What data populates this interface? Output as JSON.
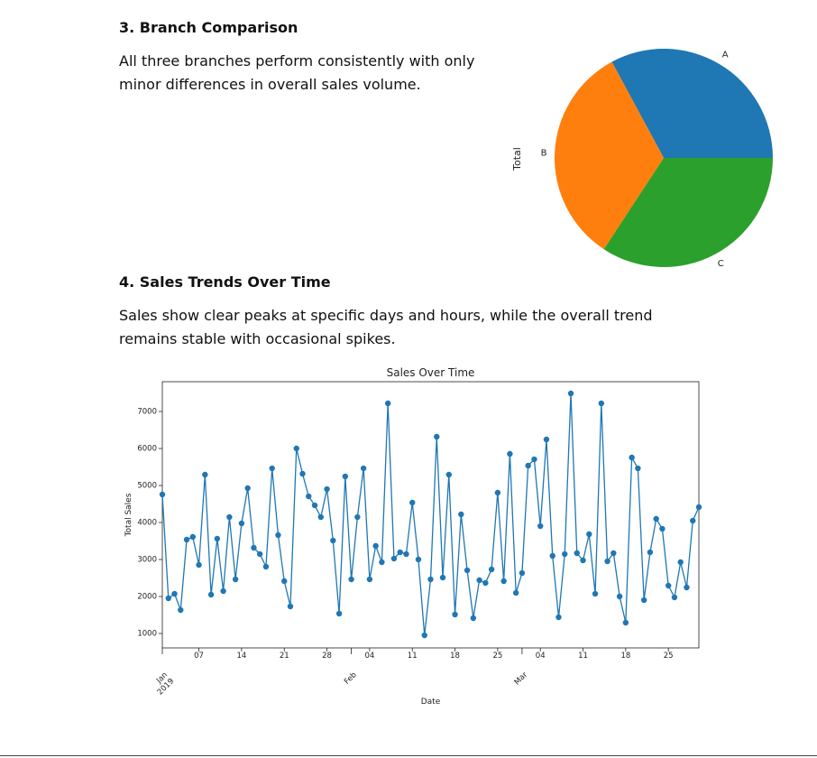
{
  "sections": [
    {
      "heading": "3. Branch Comparison",
      "text": "All three branches perform consistently with only minor differences in overall sales volume."
    },
    {
      "heading": "4. Sales Trends Over Time",
      "text": "Sales show clear peaks at specific days and hours, while the overall trend remains stable with occasional spikes."
    }
  ],
  "chart_data": [
    {
      "type": "pie",
      "categories": [
        "A",
        "B",
        "C"
      ],
      "values": [
        106200,
        106198,
        110569
      ],
      "colors": [
        "#1f77b4",
        "#ff7f0e",
        "#2ca02c"
      ],
      "ylabel": "Total",
      "startangle": 0
    },
    {
      "type": "line",
      "title": "Sales Over Time",
      "xlabel": "Date",
      "ylabel": "Total Sales",
      "color": "#1f77b4",
      "x": [
        "2019-01-01",
        "2019-01-02",
        "2019-01-03",
        "2019-01-04",
        "2019-01-05",
        "2019-01-06",
        "2019-01-07",
        "2019-01-08",
        "2019-01-09",
        "2019-01-10",
        "2019-01-11",
        "2019-01-12",
        "2019-01-13",
        "2019-01-14",
        "2019-01-15",
        "2019-01-16",
        "2019-01-17",
        "2019-01-18",
        "2019-01-19",
        "2019-01-20",
        "2019-01-21",
        "2019-01-22",
        "2019-01-23",
        "2019-01-24",
        "2019-01-25",
        "2019-01-26",
        "2019-01-27",
        "2019-01-28",
        "2019-01-29",
        "2019-01-30",
        "2019-01-31",
        "2019-02-01",
        "2019-02-02",
        "2019-02-03",
        "2019-02-04",
        "2019-02-05",
        "2019-02-06",
        "2019-02-07",
        "2019-02-08",
        "2019-02-09",
        "2019-02-10",
        "2019-02-11",
        "2019-02-12",
        "2019-02-13",
        "2019-02-14",
        "2019-02-15",
        "2019-02-16",
        "2019-02-17",
        "2019-02-18",
        "2019-02-19",
        "2019-02-20",
        "2019-02-21",
        "2019-02-22",
        "2019-02-23",
        "2019-02-24",
        "2019-02-25",
        "2019-02-26",
        "2019-02-27",
        "2019-02-28",
        "2019-03-01",
        "2019-03-02",
        "2019-03-03",
        "2019-03-04",
        "2019-03-05",
        "2019-03-06",
        "2019-03-07",
        "2019-03-08",
        "2019-03-09",
        "2019-03-10",
        "2019-03-11",
        "2019-03-12",
        "2019-03-13",
        "2019-03-14",
        "2019-03-15",
        "2019-03-16",
        "2019-03-17",
        "2019-03-18",
        "2019-03-19",
        "2019-03-20",
        "2019-03-21",
        "2019-03-22",
        "2019-03-23",
        "2019-03-24",
        "2019-03-25",
        "2019-03-26",
        "2019-03-27",
        "2019-03-28",
        "2019-03-29",
        "2019-03-30"
      ],
      "values": [
        4756,
        1951,
        2073,
        1634,
        3537,
        3610,
        2854,
        5293,
        2049,
        3561,
        2146,
        4146,
        2463,
        3976,
        4927,
        3317,
        3146,
        2805,
        5463,
        3659,
        2415,
        1732,
        6000,
        5317,
        4707,
        4463,
        4146,
        4902,
        3512,
        1537,
        5244,
        2463,
        4146,
        5463,
        2463,
        3366,
        2927,
        7220,
        3024,
        3195,
        3146,
        4537,
        3000,
        951,
        2463,
        6317,
        2512,
        5293,
        1512,
        4220,
        2707,
        1415,
        2439,
        2366,
        2732,
        4805,
        2415,
        5854,
        2098,
        2634,
        5537,
        5707,
        3902,
        6244,
        3098,
        1439,
        3146,
        7488,
        3171,
        2976,
        3683,
        2073,
        7220,
        2951,
        3171,
        2000,
        1293,
        5756,
        5463,
        1902,
        3195,
        4098,
        3829,
        2293,
        1976,
        2927,
        2244,
        4049,
        4415
      ],
      "xlim": [
        "2019-01-01",
        "2019-03-30"
      ],
      "xticks": [
        {
          "value": "2019-01-01",
          "label": "Jan\n2019"
        },
        {
          "value": "2019-01-07",
          "label": "07"
        },
        {
          "value": "2019-01-14",
          "label": "14"
        },
        {
          "value": "2019-01-21",
          "label": "21"
        },
        {
          "value": "2019-01-28",
          "label": "28"
        },
        {
          "value": "2019-02-01",
          "label": "Feb"
        },
        {
          "value": "2019-02-04",
          "label": "04"
        },
        {
          "value": "2019-02-11",
          "label": "11"
        },
        {
          "value": "2019-02-18",
          "label": "18"
        },
        {
          "value": "2019-02-25",
          "label": "25"
        },
        {
          "value": "2019-03-01",
          "label": "Mar"
        },
        {
          "value": "2019-03-04",
          "label": "04"
        },
        {
          "value": "2019-03-11",
          "label": "11"
        },
        {
          "value": "2019-03-18",
          "label": "18"
        },
        {
          "value": "2019-03-25",
          "label": "25"
        }
      ],
      "ylim": [
        610,
        7805
      ],
      "yticks": [
        1000,
        2000,
        3000,
        4000,
        5000,
        6000,
        7000
      ]
    }
  ]
}
